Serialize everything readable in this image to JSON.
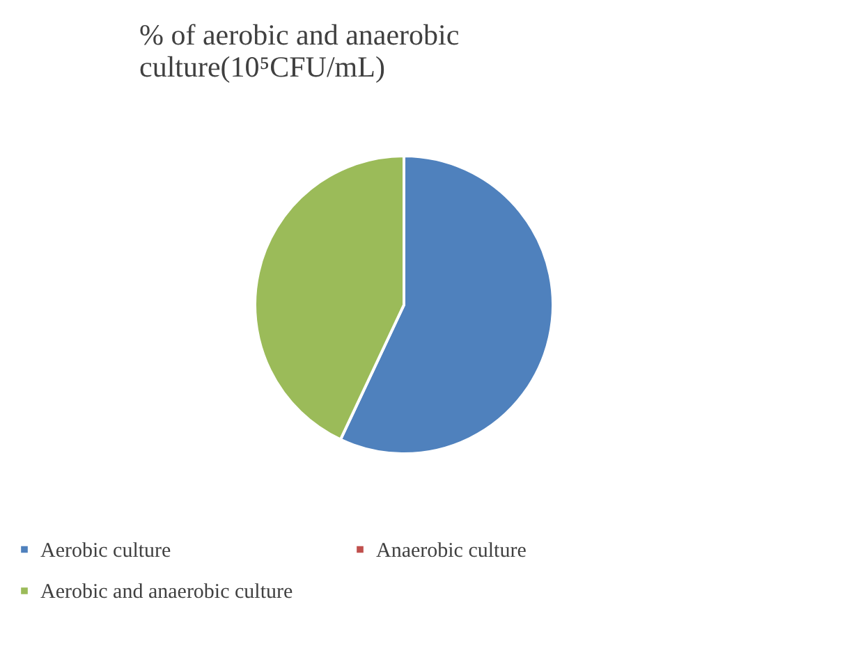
{
  "chart_data": {
    "type": "pie",
    "title": "% of aerobic and anaerobic culture(10⁵CFU/mL)",
    "categories": [
      "Aerobic culture",
      "Anaerobic culture",
      "Aerobic and anaerobic culture"
    ],
    "values": [
      57,
      0,
      43
    ],
    "colors": [
      "#4f81bd",
      "#c0504d",
      "#9bbb59"
    ],
    "legend": "bottom"
  }
}
